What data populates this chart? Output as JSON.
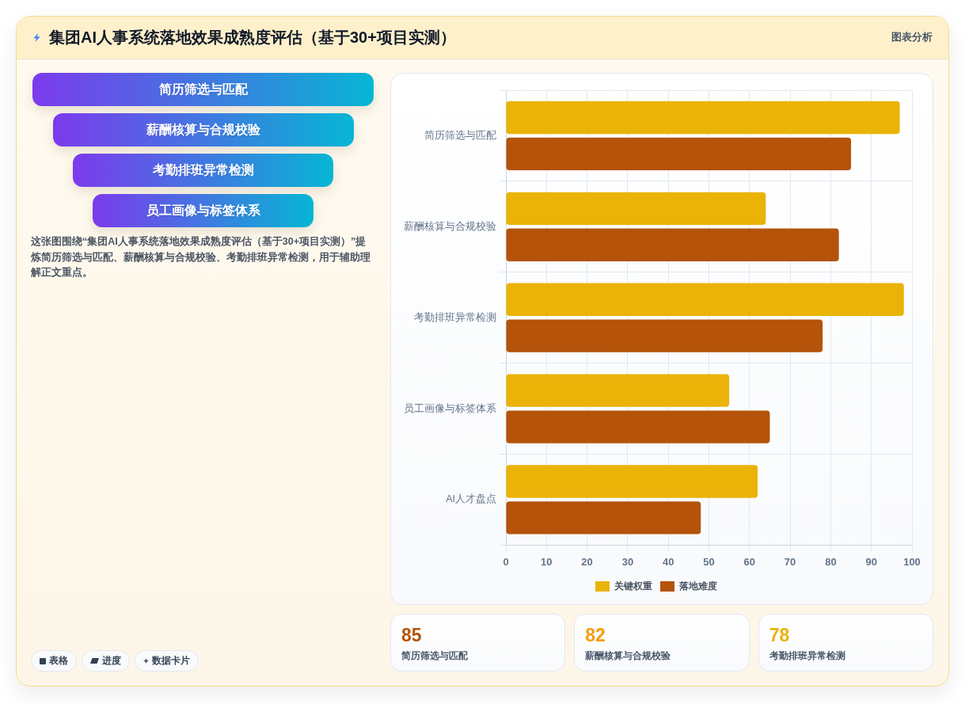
{
  "chart_data": [
    {
      "type": "other",
      "title": "集团AI人事系统落地效果成熟度评估（基于30+项目实测）",
      "categories": [
        "简历筛选与匹配",
        "薪酬核算与合规校验",
        "考勤排班异常检测",
        "员工画像与标签体系"
      ],
      "annotations": [
        "图表分析",
        "这张图围绕“集团AI人事系统落地效果成熟度评估（基于30+项目实测）”提炼简历筛选与匹配、薪酬核算与合规校验、考勤排班异常检测，用于辅助理解正文重点。",
        "表格",
        "进度",
        "数据卡片"
      ]
    },
    {
      "type": "bar",
      "orientation": "horizontal",
      "categories": [
        "简历筛选与匹配",
        "薪酬核算与合规校验",
        "考勤排班异常检测",
        "员工画像与标签体系",
        "AI人才盘点"
      ],
      "series": [
        {
          "name": "关键权重",
          "color": "#eab308",
          "values": [
            97,
            64,
            98,
            55,
            62
          ]
        },
        {
          "name": "落地难度",
          "color": "#b45309",
          "values": [
            85,
            82,
            78,
            65,
            48
          ]
        }
      ],
      "xlim": [
        0,
        100
      ],
      "xticks": [
        0,
        10,
        20,
        30,
        40,
        50,
        60,
        70,
        80,
        90,
        100
      ],
      "grid": true,
      "legend": "bottom"
    },
    {
      "type": "other",
      "annotations": [
        "85",
        "简历筛选与匹配",
        "82",
        "薪酬核算与合规校验",
        "78",
        "考勤排班异常检测"
      ]
    }
  ]
}
